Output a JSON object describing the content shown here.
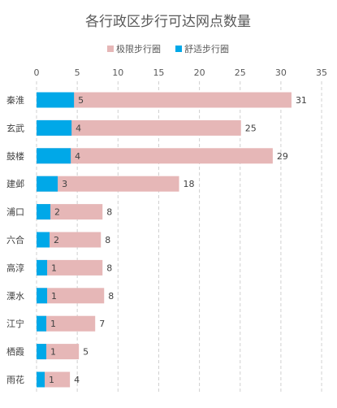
{
  "chart_data": {
    "type": "bar",
    "orientation": "horizontal",
    "title": "各行政区步行可达网点数量",
    "categories": [
      "秦淮",
      "玄武",
      "鼓楼",
      "建邺",
      "浦口",
      "六合",
      "高淳",
      "溧水",
      "江宁",
      "栖霞",
      "雨花"
    ],
    "series": [
      {
        "name": "极限步行圈",
        "color": "#e6b7b7",
        "values": [
          31,
          25,
          29,
          18,
          8,
          8,
          8,
          8,
          7,
          5,
          4
        ]
      },
      {
        "name": "舒适步行圈",
        "color": "#00a8e8",
        "values": [
          5,
          4,
          4,
          3,
          2,
          2,
          1,
          1,
          1,
          1,
          1
        ]
      }
    ],
    "bar_values": {
      "limit": [
        31.3,
        25.1,
        29,
        17.5,
        8.1,
        7.9,
        8.1,
        8.3,
        7.2,
        5.2,
        4.1
      ],
      "comfort": [
        4.6,
        4.3,
        4.2,
        2.6,
        1.7,
        1.6,
        1.3,
        1.3,
        1.2,
        1.2,
        1.0
      ]
    },
    "xlim": [
      0,
      35
    ],
    "xticks": [
      "0",
      "5",
      "10",
      "15",
      "20",
      "25",
      "30",
      "35"
    ],
    "legend_position": "top",
    "grid": true
  }
}
